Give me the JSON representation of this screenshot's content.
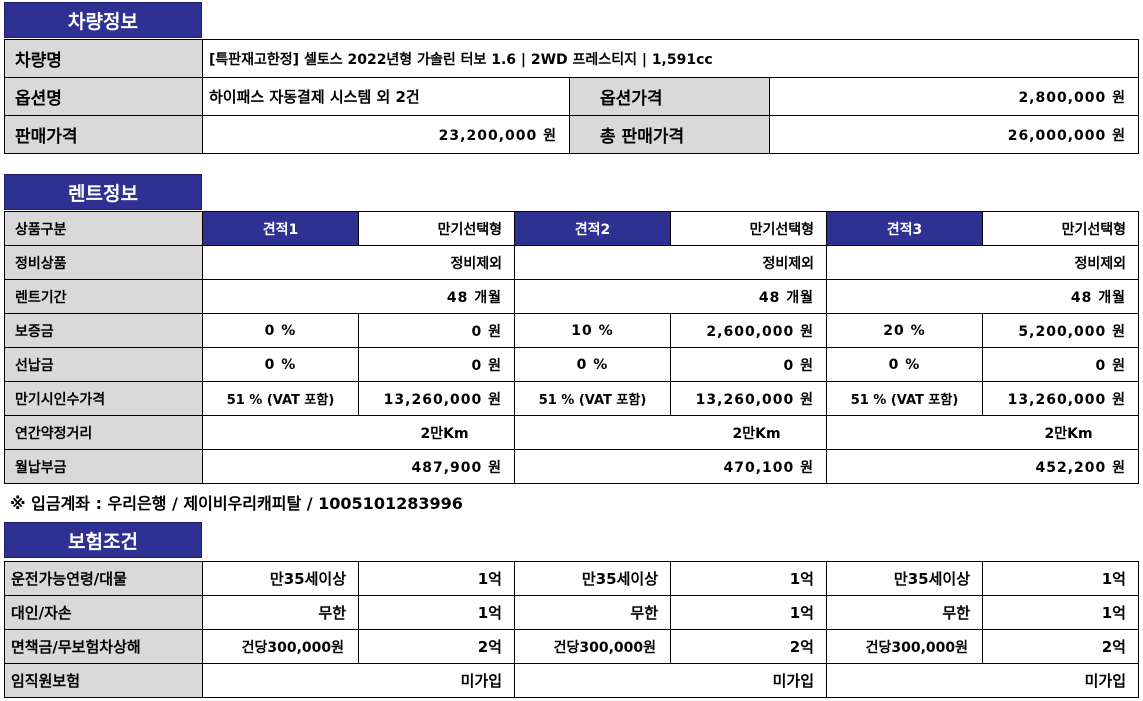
{
  "vehicle": {
    "header": "차량정보",
    "label_name": "차량명",
    "name": "[특판재고한정] 셀토스 2022년형 가솔린 터보 1.6 | 2WD 프레스티지 | 1,591cc",
    "label_option": "옵션명",
    "option": "하이패스 자동결제 시스템 외 2건",
    "label_option_price": "옵션가격",
    "option_price": "2,800,000 원",
    "label_sale_price": "판매가격",
    "sale_price": "23,200,000 원",
    "label_total": "총 판매가격",
    "total_price": "26,000,000 원"
  },
  "rent": {
    "header": "렌트정보",
    "rows": {
      "product": "상품구분",
      "maintenance": "정비상품",
      "period": "렌트기간",
      "deposit": "보증금",
      "prepay": "선납금",
      "residual": "만기시인수가격",
      "mileage": "연간약정거리",
      "monthly": "월납부금"
    },
    "quotes": [
      {
        "name": "견적1",
        "type": "만기선택형",
        "maintenance": "정비제외",
        "period": "48 개월",
        "deposit_pct": "0 %",
        "deposit_amt": "0 원",
        "prepay_pct": "0 %",
        "prepay_amt": "0 원",
        "residual_pct": "51 % (VAT 포함)",
        "residual_amt": "13,260,000 원",
        "mileage": "2만Km",
        "monthly": "487,900 원"
      },
      {
        "name": "견적2",
        "type": "만기선택형",
        "maintenance": "정비제외",
        "period": "48 개월",
        "deposit_pct": "10 %",
        "deposit_amt": "2,600,000 원",
        "prepay_pct": "0 %",
        "prepay_amt": "0 원",
        "residual_pct": "51 % (VAT 포함)",
        "residual_amt": "13,260,000 원",
        "mileage": "2만Km",
        "monthly": "470,100 원"
      },
      {
        "name": "견적3",
        "type": "만기선택형",
        "maintenance": "정비제외",
        "period": "48 개월",
        "deposit_pct": "20 %",
        "deposit_amt": "5,200,000 원",
        "prepay_pct": "0 %",
        "prepay_amt": "0 원",
        "residual_pct": "51 % (VAT 포함)",
        "residual_amt": "13,260,000 원",
        "mileage": "2만Km",
        "monthly": "452,200 원"
      }
    ],
    "note": "※ 입금계좌 : 우리은행 / 제이비우리캐피탈 / 1005101283996"
  },
  "insurance": {
    "header": "보험조건",
    "rows": {
      "driver": "운전가능연령/대물",
      "personal": "대인/자손",
      "deductible": "면책금/무보험차상해",
      "employee": "임직원보험"
    },
    "quotes": [
      {
        "age": "만35세이상",
        "property": "1억",
        "personal": "무한",
        "self": "1억",
        "deductible": "건당300,000원",
        "uninsured": "2억",
        "employee": "미가입"
      },
      {
        "age": "만35세이상",
        "property": "1억",
        "personal": "무한",
        "self": "1억",
        "deductible": "건당300,000원",
        "uninsured": "2억",
        "employee": "미가입"
      },
      {
        "age": "만35세이상",
        "property": "1억",
        "personal": "무한",
        "self": "1억",
        "deductible": "건당300,000원",
        "uninsured": "2억",
        "employee": "미가입"
      }
    ]
  }
}
